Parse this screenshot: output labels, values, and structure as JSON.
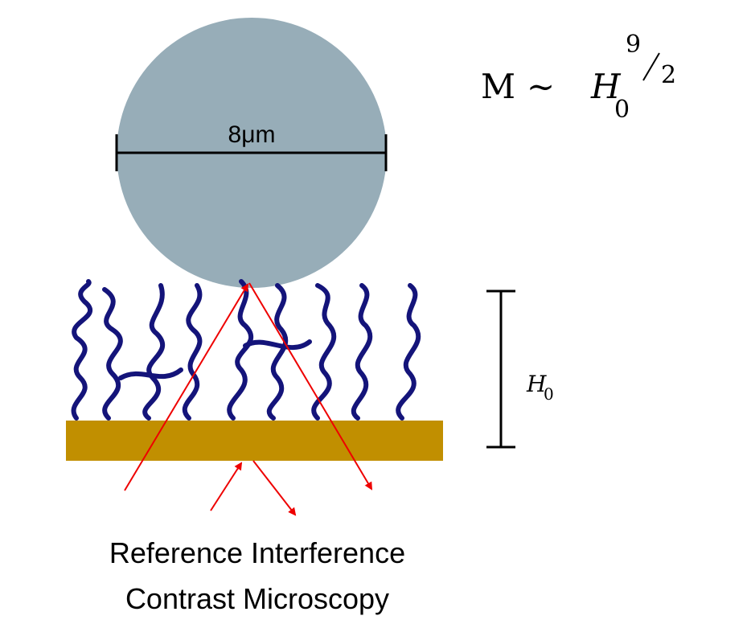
{
  "sphere": {
    "label": "8μm"
  },
  "formula": {
    "lhs": "M",
    "relation": "∼",
    "base": "H",
    "subscript": "0",
    "exponent_numerator": "9",
    "exponent_denominator": "2"
  },
  "height_label": {
    "base": "H",
    "subscript": "0"
  },
  "caption": [
    "Reference Interference",
    "Contrast Microscopy"
  ]
}
